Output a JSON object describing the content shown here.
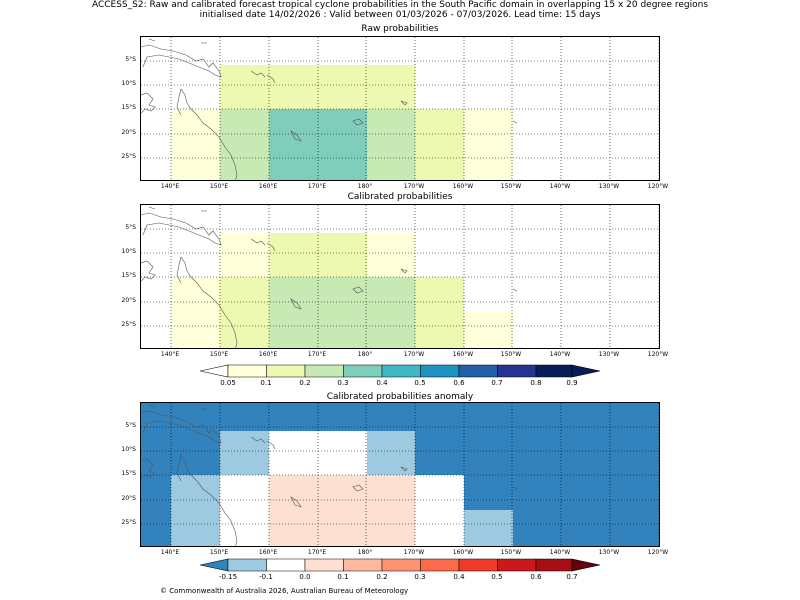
{
  "header": {
    "line1": "ACCESS_S2: Raw and calibrated forecast tropical cyclone probabilities in the South Pacific domain in overlapping 15 x 20 degree regions",
    "line2": "initialised date 14/02/2026 :  Valid between 01/03/2026 - 07/03/2026. Lead time: 15 days"
  },
  "panels": {
    "raw_title": "Raw probabilities",
    "cal_title": "Calibrated probabilities",
    "anom_title": "Calibrated probabilities anomaly"
  },
  "axes": {
    "lat_labels": [
      "5°S",
      "10°S",
      "15°S",
      "20°S",
      "25°S"
    ],
    "lon_labels": [
      "140°E",
      "150°E",
      "160°E",
      "170°E",
      "180°",
      "170°W",
      "160°W",
      "150°W",
      "140°W",
      "130°W",
      "120°W"
    ]
  },
  "prob_colorbar": {
    "labels": [
      "0.05",
      "0.1",
      "0.2",
      "0.3",
      "0.4",
      "0.5",
      "0.6",
      "0.7",
      "0.8",
      "0.9"
    ],
    "colors": [
      "#ffffd9",
      "#edf8b1",
      "#c7e9b4",
      "#7fcdbb",
      "#41b6c4",
      "#1d91c0",
      "#225ea8",
      "#253494",
      "#081d58"
    ]
  },
  "anom_colorbar": {
    "labels": [
      "-0.15",
      "-0.1",
      "0.0",
      "0.1",
      "0.2",
      "0.3",
      "0.4",
      "0.5",
      "0.6",
      "0.7"
    ],
    "colors": [
      "#3182bd",
      "#9ecae1",
      "#ffffff",
      "#fee0d2",
      "#fcbba1",
      "#fc9272",
      "#fb6a4a",
      "#ef3b2c",
      "#cb181d",
      "#a50f15"
    ]
  },
  "footer": {
    "copyright": "© Commonwealth of Australia 2026, Australian Bureau of Meteorology"
  }
}
